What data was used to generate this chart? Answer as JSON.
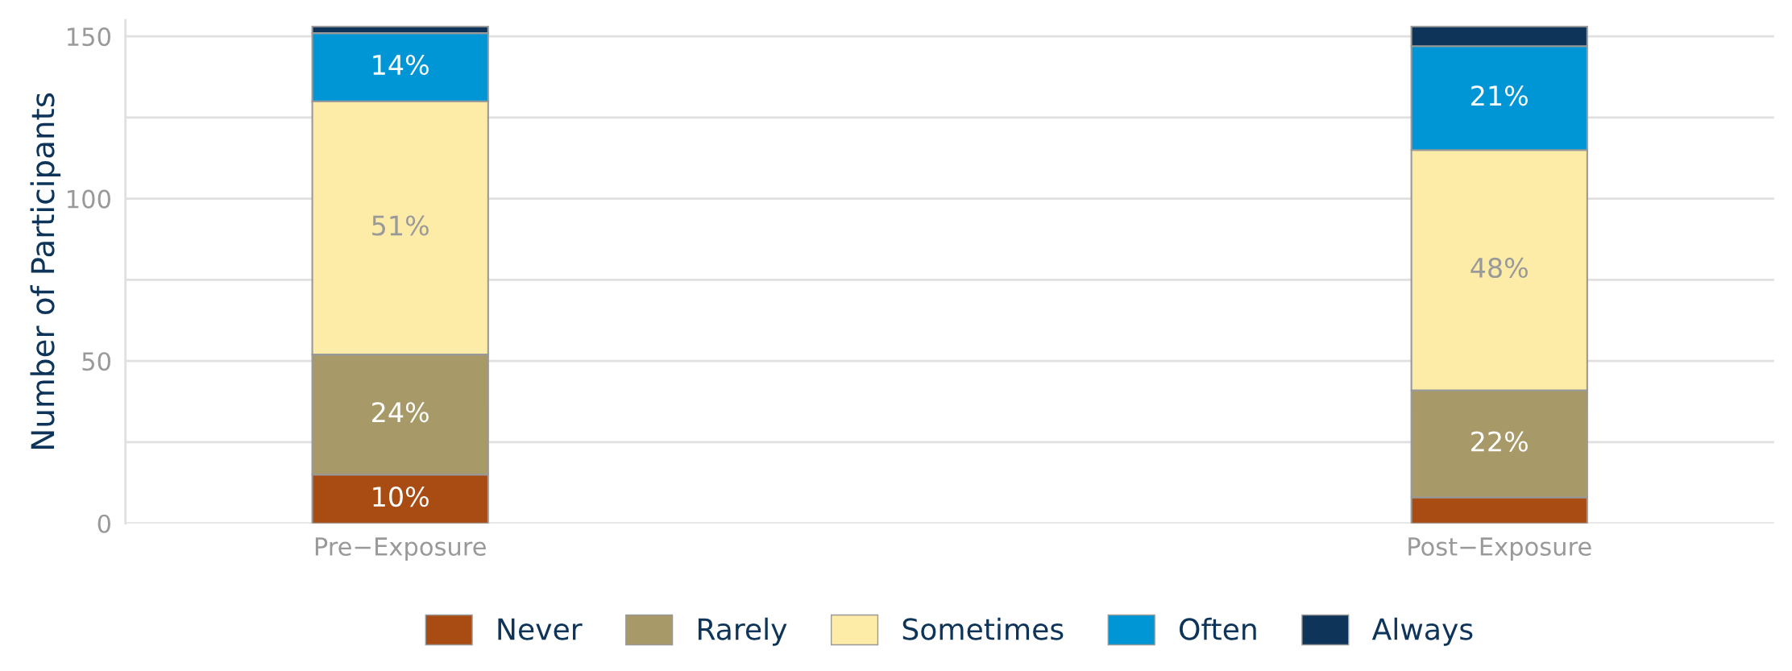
{
  "chart_data": {
    "type": "bar",
    "stacked": true,
    "ylabel": "Number of Participants",
    "categories": [
      "Pre−Exposure",
      "Post−Exposure"
    ],
    "series": [
      {
        "name": "Never",
        "color": "#a84c14",
        "values": [
          15,
          8
        ]
      },
      {
        "name": "Rarely",
        "color": "#a89968",
        "values": [
          37,
          33
        ]
      },
      {
        "name": "Sometimes",
        "color": "#fdeba8",
        "values": [
          78,
          74
        ]
      },
      {
        "name": "Often",
        "color": "#0096d6",
        "values": [
          21,
          32
        ]
      },
      {
        "name": "Always",
        "color": "#0e3559",
        "values": [
          2,
          6
        ]
      }
    ],
    "annotations": [
      "10%",
      "24%",
      "51%",
      "14%",
      "22%",
      "48%",
      "21%"
    ],
    "ylim": [
      0,
      155
    ],
    "yticks": [
      0,
      {
        "value": 25,
        "label": null
      },
      50,
      {
        "value": 75,
        "label": null
      },
      100,
      {
        "value": 125,
        "label": null
      },
      150
    ],
    "grid": "y",
    "legend": "bottom"
  }
}
